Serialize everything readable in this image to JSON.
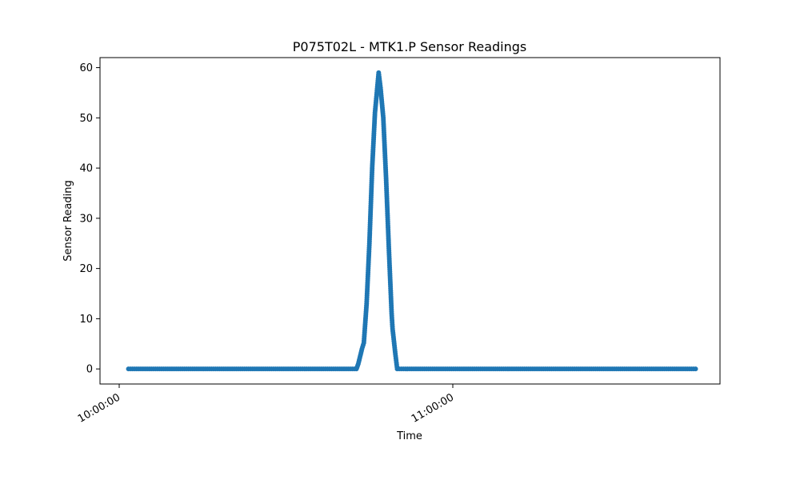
{
  "chart_data": {
    "type": "line",
    "title": "P075T02L - MTK1.P Sensor Readings",
    "xlabel": "Time",
    "ylabel": "Sensor Reading",
    "x_ticks": [
      "10:00:00",
      "11:00:00"
    ],
    "y_ticks": [
      0,
      10,
      20,
      30,
      40,
      50,
      60
    ],
    "ylim": [
      -3,
      62
    ],
    "grid": false,
    "legend": "none",
    "series": [
      {
        "color": "#1f77b4",
        "marker": "circle",
        "points": [
          [
            "10:01:40",
            0
          ],
          [
            "10:42:40",
            0
          ],
          [
            "10:43:00",
            1
          ],
          [
            "10:43:20",
            2.5
          ],
          [
            "10:43:40",
            4
          ],
          [
            "10:44:00",
            5.2
          ],
          [
            "10:44:30",
            13
          ],
          [
            "10:45:00",
            25
          ],
          [
            "10:45:30",
            40
          ],
          [
            "10:46:00",
            51
          ],
          [
            "10:46:30",
            57
          ],
          [
            "10:46:40",
            59
          ],
          [
            "10:47:00",
            56
          ],
          [
            "10:47:30",
            50
          ],
          [
            "10:48:00",
            38
          ],
          [
            "10:48:30",
            24
          ],
          [
            "10:49:00",
            11
          ],
          [
            "10:49:10",
            8
          ],
          [
            "10:49:40",
            3
          ],
          [
            "10:50:00",
            0
          ],
          [
            "11:43:40",
            0
          ]
        ]
      }
    ]
  }
}
